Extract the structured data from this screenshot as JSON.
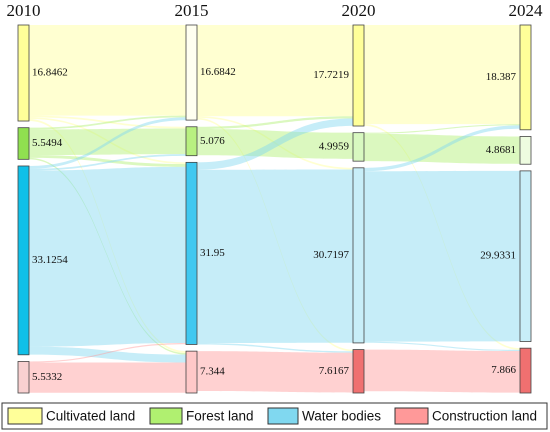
{
  "chart_data": {
    "type": "sankey",
    "years": [
      "2010",
      "2015",
      "2020",
      "2024"
    ],
    "categories": [
      "Cultivated land",
      "Forest land",
      "Water bodies",
      "Construction land"
    ],
    "values": [
      [
        16.8462,
        5.5494,
        33.1254,
        5.5332
      ],
      [
        16.6842,
        5.076,
        31.95,
        7.344
      ],
      [
        17.7219,
        4.9959,
        30.7197,
        7.6167
      ],
      [
        18.387,
        4.8681,
        29.9331,
        7.866
      ]
    ],
    "colors": [
      "#ffff99",
      "#b0f070",
      "#80d8f0",
      "#ff9999"
    ],
    "node_colors": [
      [
        "#ffff99",
        "#90e050",
        "#10c0e8",
        "#f8d0d0"
      ],
      [
        "#fffff0",
        "#b8f080",
        "#40c8f0",
        "#ffc8c8"
      ],
      [
        "#ffff99",
        "#d8f8c0",
        "#c8eef8",
        "#f07070"
      ],
      [
        "#ffff99",
        "#eefce0",
        "#c8eef8",
        "#f07070"
      ]
    ],
    "flows": [
      [
        {
          "source": 0,
          "target": 0,
          "value": 15.9
        },
        {
          "source": 0,
          "target": 1,
          "value": 0.3
        },
        {
          "source": 0,
          "target": 2,
          "value": 0.3
        },
        {
          "source": 0,
          "target": 3,
          "value": 0.35
        },
        {
          "source": 1,
          "target": 0,
          "value": 0.3
        },
        {
          "source": 1,
          "target": 1,
          "value": 4.5
        },
        {
          "source": 1,
          "target": 2,
          "value": 0.5
        },
        {
          "source": 1,
          "target": 3,
          "value": 0.25
        },
        {
          "source": 2,
          "target": 0,
          "value": 0.5
        },
        {
          "source": 2,
          "target": 1,
          "value": 0.3
        },
        {
          "source": 2,
          "target": 2,
          "value": 30.9
        },
        {
          "source": 2,
          "target": 3,
          "value": 1.4
        },
        {
          "source": 3,
          "target": 2,
          "value": 0.2
        },
        {
          "source": 3,
          "target": 3,
          "value": 5.3
        }
      ],
      [
        {
          "source": 0,
          "target": 0,
          "value": 16.0
        },
        {
          "source": 0,
          "target": 2,
          "value": 0.3
        },
        {
          "source": 0,
          "target": 3,
          "value": 0.3
        },
        {
          "source": 1,
          "target": 0,
          "value": 0.4
        },
        {
          "source": 1,
          "target": 1,
          "value": 4.6
        },
        {
          "source": 2,
          "target": 0,
          "value": 1.3
        },
        {
          "source": 2,
          "target": 2,
          "value": 30.4
        },
        {
          "source": 2,
          "target": 3,
          "value": 0.25
        },
        {
          "source": 3,
          "target": 3,
          "value": 7.0
        }
      ],
      [
        {
          "source": 0,
          "target": 0,
          "value": 17.4
        },
        {
          "source": 0,
          "target": 3,
          "value": 0.3
        },
        {
          "source": 1,
          "target": 0,
          "value": 0.2
        },
        {
          "source": 1,
          "target": 1,
          "value": 4.8
        },
        {
          "source": 2,
          "target": 0,
          "value": 0.6
        },
        {
          "source": 2,
          "target": 2,
          "value": 29.9
        },
        {
          "source": 2,
          "target": 3,
          "value": 0.2
        },
        {
          "source": 3,
          "target": 3,
          "value": 7.3
        }
      ]
    ]
  }
}
